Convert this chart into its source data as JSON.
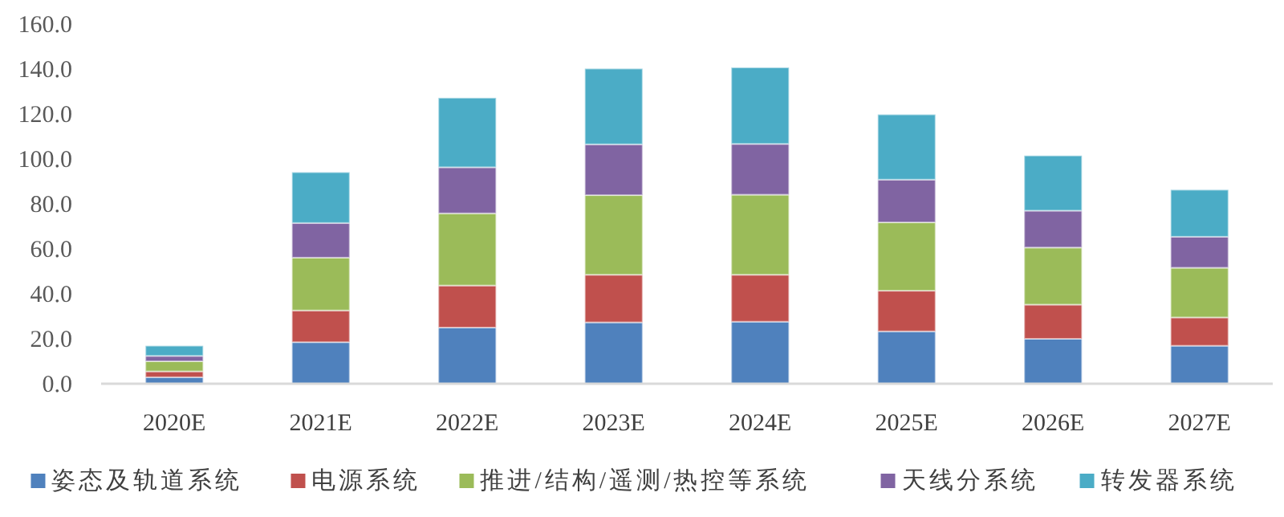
{
  "chart_data": {
    "type": "bar",
    "stacked": true,
    "categories": [
      "2020E",
      "2021E",
      "2022E",
      "2023E",
      "2024E",
      "2025E",
      "2026E",
      "2027E"
    ],
    "series": [
      {
        "name": "姿态及轨道系统",
        "color": "#4f81bd",
        "values": [
          2.9,
          18.5,
          25.0,
          27.3,
          27.6,
          23.3,
          20.0,
          16.9
        ]
      },
      {
        "name": "电源系统",
        "color": "#c0504d",
        "values": [
          2.6,
          14.1,
          18.7,
          21.2,
          20.9,
          18.1,
          15.2,
          12.6
        ]
      },
      {
        "name": "推进/结构/遥测/热控等系统",
        "color": "#9bbb59",
        "values": [
          4.5,
          23.5,
          32.1,
          35.4,
          35.6,
          30.4,
          25.4,
          22.1
        ]
      },
      {
        "name": "天线分系统",
        "color": "#8064a2",
        "values": [
          2.4,
          15.4,
          20.5,
          22.6,
          22.6,
          19.0,
          16.4,
          13.8
        ]
      },
      {
        "name": "转发器系统",
        "color": "#4bacc6",
        "values": [
          4.5,
          22.6,
          30.9,
          33.7,
          34.0,
          29.0,
          24.5,
          20.9
        ]
      }
    ],
    "ylim": [
      0,
      160
    ],
    "yticks": [
      {
        "value": 0,
        "label": "0.0"
      },
      {
        "value": 20,
        "label": "20.0"
      },
      {
        "value": 40,
        "label": "40.0"
      },
      {
        "value": 60,
        "label": "60.0"
      },
      {
        "value": 80,
        "label": "80.0"
      },
      {
        "value": 100,
        "label": "100.0"
      },
      {
        "value": 120,
        "label": "120.0"
      },
      {
        "value": 140,
        "label": "140.0"
      },
      {
        "value": 160,
        "label": "160.0"
      }
    ],
    "grid": false,
    "legend": "bottom"
  }
}
